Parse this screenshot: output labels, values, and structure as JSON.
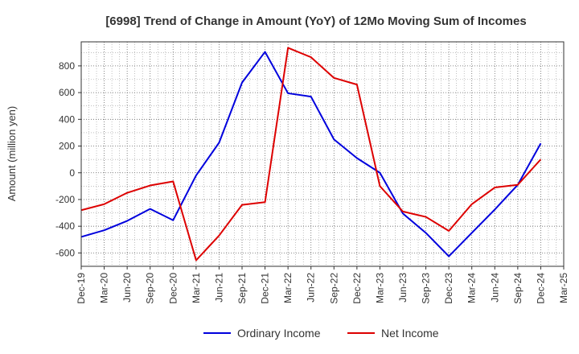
{
  "chart_data": {
    "type": "line",
    "title": "[6998]  Trend of Change in Amount (YoY) of 12Mo Moving Sum of Incomes",
    "ylabel": "Amount (million yen)",
    "xlabel": "",
    "ylim": [
      -700,
      980
    ],
    "yticks": [
      -600,
      -400,
      -200,
      0,
      200,
      400,
      600,
      800
    ],
    "x": [
      "Dec-19",
      "Mar-20",
      "Jun-20",
      "Sep-20",
      "Dec-20",
      "Mar-21",
      "Jun-21",
      "Sep-21",
      "Dec-21",
      "Mar-22",
      "Jun-22",
      "Sep-22",
      "Dec-22",
      "Mar-23",
      "Jun-23",
      "Sep-23",
      "Dec-23",
      "Mar-24",
      "Jun-24",
      "Sep-24",
      "Dec-24",
      "Mar-25"
    ],
    "grid": true,
    "legend_position": "bottom",
    "series": [
      {
        "name": "Ordinary Income",
        "color": "#0000dd",
        "values": [
          -480,
          -430,
          -360,
          -270,
          -355,
          -20,
          225,
          675,
          905,
          595,
          570,
          250,
          110,
          0,
          -305,
          -450,
          -625,
          -450,
          -275,
          -90,
          220,
          null
        ]
      },
      {
        "name": "Net Income",
        "color": "#dd0000",
        "values": [
          -280,
          -235,
          -150,
          -95,
          -65,
          -655,
          -470,
          -240,
          -220,
          935,
          865,
          710,
          660,
          -100,
          -290,
          -330,
          -435,
          -235,
          -110,
          -90,
          100,
          null
        ]
      }
    ]
  }
}
